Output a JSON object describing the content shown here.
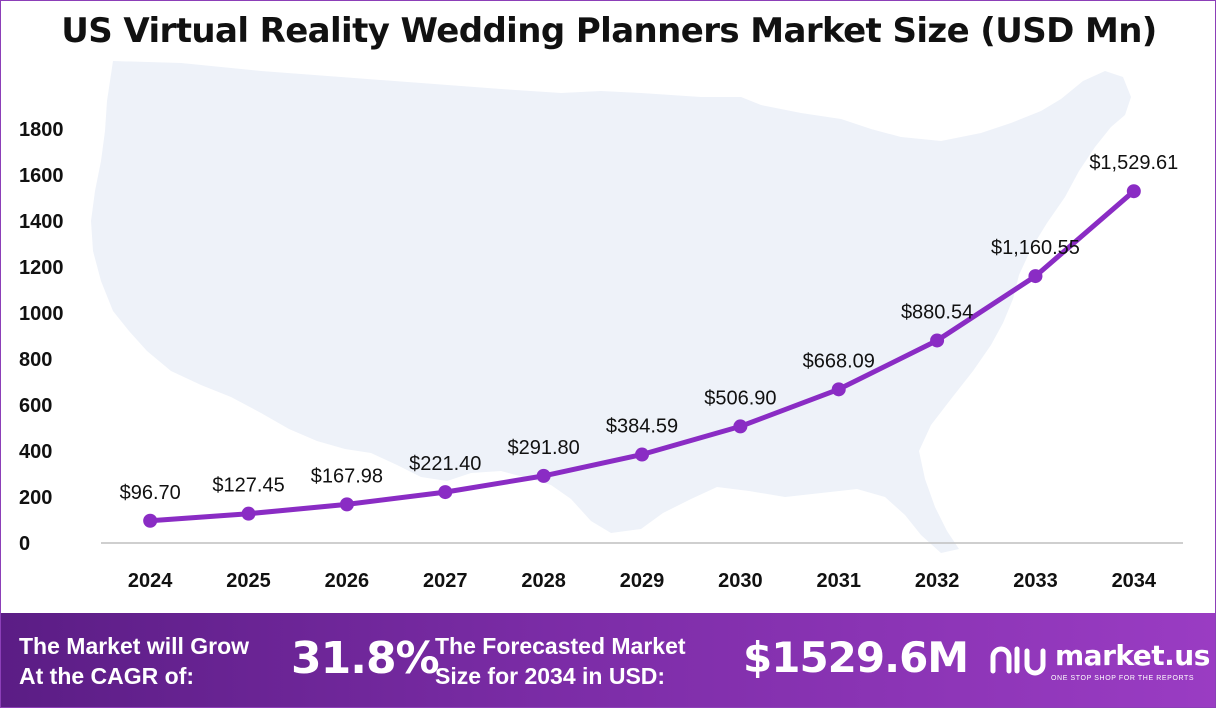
{
  "title": "US Virtual Reality Wedding Planners Market Size (USD Mn)",
  "colors": {
    "line": "#8a2cc4",
    "map": "#eef2f9",
    "axis": "#bfbfbf",
    "banner": "#7b2ca6"
  },
  "chart_data": {
    "type": "line",
    "title": "US Virtual Reality Wedding Planners Market Size (USD Mn)",
    "xlabel": "",
    "ylabel": "",
    "categories": [
      "2024",
      "2025",
      "2026",
      "2027",
      "2028",
      "2029",
      "2030",
      "2031",
      "2032",
      "2033",
      "2034"
    ],
    "values": [
      96.7,
      127.45,
      167.98,
      221.4,
      291.8,
      384.59,
      506.9,
      668.09,
      880.54,
      1160.55,
      1529.61
    ],
    "data_labels": [
      "$96.70",
      "$127.45",
      "$167.98",
      "$221.40",
      "$291.80",
      "$384.59",
      "$506.90",
      "$668.09",
      "$880.54",
      "$1,160.55",
      "$1,529.61"
    ],
    "ylim": [
      0,
      1800
    ],
    "yticks": [
      "0",
      "200",
      "400",
      "600",
      "800",
      "1000",
      "1200",
      "1400",
      "1600",
      "1800"
    ],
    "grid": false,
    "legend": "none",
    "background_icon": "us-map-silhouette"
  },
  "banner": {
    "cagr_text_line1": "The Market will Grow",
    "cagr_text_line2": "At the CAGR of:",
    "cagr_value": "31.8%",
    "forecast_text_line1": "The Forecasted Market",
    "forecast_text_line2": "Size for 2034 in USD:",
    "forecast_value": "$1529.6M",
    "logo_icon": "market-us-logo-icon",
    "logo_text": "market.us",
    "logo_tagline": "ONE STOP SHOP FOR THE REPORTS"
  }
}
